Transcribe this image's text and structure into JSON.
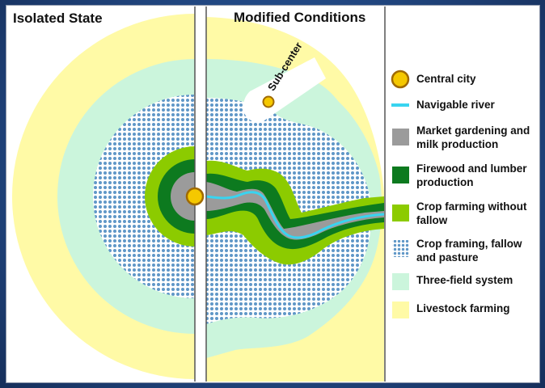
{
  "panels": {
    "left_title": "Isolated State",
    "right_title": "Modified Conditions",
    "subcenter_label": "Sub-center"
  },
  "legend": {
    "items": [
      {
        "key": "central-city",
        "label": "Central city",
        "color": "#f5c800",
        "icon": "circle"
      },
      {
        "key": "navigable-river",
        "label": "Navigable river",
        "color": "#39d4f0",
        "icon": "line"
      },
      {
        "key": "market-gardening",
        "label": "Market gardening and milk production",
        "color": "#9b9b9b",
        "icon": "square"
      },
      {
        "key": "firewood-lumber",
        "label": "Firewood and lumber production",
        "color": "#0d7a1f",
        "icon": "square"
      },
      {
        "key": "crop-no-fallow",
        "label": "Crop farming without fallow",
        "color": "#8ccb00",
        "icon": "square"
      },
      {
        "key": "crop-fallow-pasture",
        "label": "Crop framing, fallow and pasture",
        "color": "#5f97c7",
        "icon": "dotted-square"
      },
      {
        "key": "three-field",
        "label": "Three-field system",
        "color": "#cbf5dc",
        "icon": "square"
      },
      {
        "key": "livestock",
        "label": "Livestock farming",
        "color": "#fffaa6",
        "icon": "square"
      }
    ]
  },
  "colors": {
    "frame": "#234a86",
    "city": "#f5c800",
    "city_stroke": "#a06a00",
    "river": "#39d4f0"
  }
}
